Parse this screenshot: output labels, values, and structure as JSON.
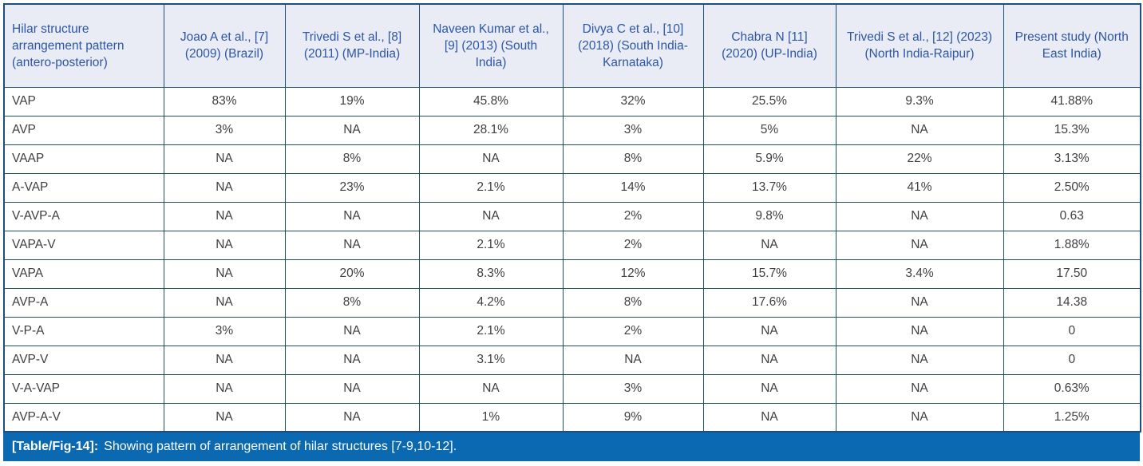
{
  "colors": {
    "table_border": "#1f4e79",
    "header_background": "#e9ebf5",
    "header_text": "#2d57a5",
    "body_text": "#404040",
    "caption_background": "#0a69b0",
    "caption_text": "#ffffff"
  },
  "table": {
    "columns": [
      {
        "label": "Hilar structure arrangement pattern (antero-posterior)"
      },
      {
        "label": "Joao A et al., [7] (2009) (Brazil)"
      },
      {
        "label": "Trivedi S et al., [8] (2011) (MP-India)"
      },
      {
        "label": "Naveen Kumar et al., [9] (2013) (South India)"
      },
      {
        "label": "Divya C et al., [10] (2018) (South India-Karnataka)"
      },
      {
        "label": "Chabra N [11] (2020) (UP-India)"
      },
      {
        "label": "Trivedi S et al., [12] (2023) (North India-Raipur)"
      },
      {
        "label": "Present study (North East India)"
      }
    ],
    "rows": [
      {
        "pattern": "VAP",
        "values": [
          "83%",
          "19%",
          "45.8%",
          "32%",
          "25.5%",
          "9.3%",
          "41.88%"
        ]
      },
      {
        "pattern": "AVP",
        "values": [
          "3%",
          "NA",
          "28.1%",
          "3%",
          "5%",
          "NA",
          "15.3%"
        ]
      },
      {
        "pattern": "VAAP",
        "values": [
          "NA",
          "8%",
          "NA",
          "8%",
          "5.9%",
          "22%",
          "3.13%"
        ]
      },
      {
        "pattern": "A-VAP",
        "values": [
          "NA",
          "23%",
          "2.1%",
          "14%",
          "13.7%",
          "41%",
          "2.50%"
        ]
      },
      {
        "pattern": "V-AVP-A",
        "values": [
          "NA",
          "NA",
          "NA",
          "2%",
          "9.8%",
          "NA",
          "0.63"
        ]
      },
      {
        "pattern": "VAPA-V",
        "values": [
          "NA",
          "NA",
          "2.1%",
          "2%",
          "NA",
          "NA",
          "1.88%"
        ]
      },
      {
        "pattern": "VAPA",
        "values": [
          "NA",
          "20%",
          "8.3%",
          "12%",
          "15.7%",
          "3.4%",
          "17.50"
        ]
      },
      {
        "pattern": "AVP-A",
        "values": [
          "NA",
          "8%",
          "4.2%",
          "8%",
          "17.6%",
          "NA",
          "14.38"
        ]
      },
      {
        "pattern": "V-P-A",
        "values": [
          "3%",
          "NA",
          "2.1%",
          "2%",
          "NA",
          "NA",
          "0"
        ]
      },
      {
        "pattern": "AVP-V",
        "values": [
          "NA",
          "NA",
          "3.1%",
          "NA",
          "NA",
          "NA",
          "0"
        ]
      },
      {
        "pattern": "V-A-VAP",
        "values": [
          "NA",
          "NA",
          "NA",
          "3%",
          "NA",
          "NA",
          "0.63%"
        ]
      },
      {
        "pattern": "AVP-A-V",
        "values": [
          "NA",
          "NA",
          "1%",
          "9%",
          "NA",
          "NA",
          "1.25%"
        ]
      }
    ]
  },
  "caption": {
    "label": "[Table/Fig-14]:",
    "text": "Showing pattern of arrangement of hilar structures [7-9,10-12]."
  }
}
